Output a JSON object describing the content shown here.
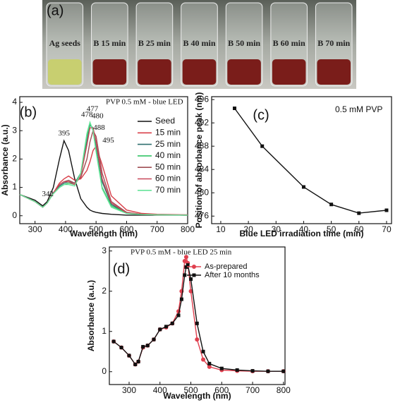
{
  "photo": {
    "panel": "(a)",
    "vials": [
      "Ag seeds",
      "B 15 min",
      "B 25 min",
      "B 40 min",
      "B 50 min",
      "B 60 min",
      "B 70 min"
    ]
  },
  "chart_data": [
    {
      "type": "line",
      "panel": "(b)",
      "legend_title": "PVP 0.5 mM - blue LED",
      "x_label": "Wavelength (nm)",
      "y_label": "Absorbance (a.u.)",
      "xlim": [
        250,
        800
      ],
      "xticks": [
        300,
        400,
        500,
        600,
        700,
        800
      ],
      "ylim": [
        -0.28,
        4.2
      ],
      "yticks": [
        0,
        1,
        2,
        3,
        4
      ],
      "x": [
        250,
        300,
        325,
        340,
        360,
        380,
        395,
        410,
        430,
        450,
        470,
        480,
        490,
        500,
        520,
        550,
        600,
        650,
        700,
        800
      ],
      "series": [
        {
          "name": "Seed",
          "color": "#111111",
          "values": [
            0.75,
            0.55,
            0.35,
            0.5,
            1.0,
            2.0,
            2.65,
            2.3,
            1.3,
            0.6,
            0.3,
            0.2,
            0.15,
            0.12,
            0.08,
            0.05,
            0.02,
            0.02,
            0.02,
            0.02
          ]
        },
        {
          "name": "15 min",
          "color": "#d9404a",
          "values": [
            0.75,
            0.5,
            0.3,
            0.45,
            0.8,
            1.15,
            1.3,
            1.4,
            1.25,
            1.3,
            1.6,
            1.9,
            2.3,
            2.45,
            1.8,
            0.7,
            0.2,
            0.08,
            0.05,
            0.03
          ]
        },
        {
          "name": "25 min",
          "color": "#2f6f6f",
          "values": [
            0.75,
            0.5,
            0.3,
            0.45,
            0.8,
            1.05,
            1.15,
            1.2,
            1.15,
            1.5,
            2.6,
            3.2,
            3.1,
            2.5,
            1.2,
            0.4,
            0.1,
            0.05,
            0.03,
            0.02
          ]
        },
        {
          "name": "40 min",
          "color": "#33c466",
          "values": [
            0.75,
            0.5,
            0.3,
            0.45,
            0.78,
            1.0,
            1.1,
            1.15,
            1.1,
            1.5,
            2.8,
            3.25,
            3.0,
            2.3,
            1.0,
            0.35,
            0.1,
            0.05,
            0.03,
            0.02
          ]
        },
        {
          "name": "50 min",
          "color": "#a04f55",
          "values": [
            0.75,
            0.5,
            0.3,
            0.45,
            0.8,
            1.1,
            1.2,
            1.25,
            1.15,
            1.35,
            2.0,
            2.6,
            3.0,
            2.8,
            1.5,
            0.5,
            0.12,
            0.05,
            0.03,
            0.02
          ]
        },
        {
          "name": "60 min",
          "color": "#c8485a",
          "values": [
            0.75,
            0.5,
            0.3,
            0.45,
            0.8,
            1.1,
            1.2,
            1.2,
            1.1,
            1.4,
            2.5,
            3.1,
            3.1,
            2.6,
            1.3,
            0.45,
            0.1,
            0.05,
            0.03,
            0.02
          ]
        },
        {
          "name": "70 min",
          "color": "#66e39a",
          "values": [
            0.75,
            0.5,
            0.3,
            0.45,
            0.78,
            1.0,
            1.1,
            1.1,
            1.05,
            1.5,
            2.9,
            3.3,
            3.0,
            2.25,
            0.95,
            0.3,
            0.08,
            0.04,
            0.03,
            0.02
          ]
        }
      ],
      "annotations": [
        {
          "label": "342",
          "x": 342,
          "y": 0.5
        },
        {
          "label": "395",
          "x": 395,
          "y": 2.65
        },
        {
          "label": "478",
          "x": 470,
          "y": 3.3
        },
        {
          "label": "477",
          "x": 488,
          "y": 3.5
        },
        {
          "label": "480",
          "x": 505,
          "y": 3.25
        },
        {
          "label": "488",
          "x": 510,
          "y": 2.85
        },
        {
          "label": "495",
          "x": 540,
          "y": 2.4
        }
      ]
    },
    {
      "type": "line",
      "panel": "(c)",
      "note": "0.5 mM PVP",
      "x_label": "Blue LED irradiation time (min)",
      "y_label": "Position of absorbance peak (nm)",
      "xlim": [
        6.7,
        71.8
      ],
      "xticks": [
        10,
        20,
        30,
        40,
        50,
        60,
        70
      ],
      "ylim": [
        474.7,
        496.5
      ],
      "yticks": [
        476,
        480,
        484,
        488,
        492,
        496
      ],
      "x": [
        15,
        25,
        40,
        50,
        60,
        70
      ],
      "values": [
        494.5,
        488,
        481,
        478,
        476.5,
        477
      ],
      "color": "#111111",
      "marker": "square"
    },
    {
      "type": "line",
      "panel": "(d)",
      "legend_title": "PVP 0.5 mM - blue LED 25 min",
      "x_label": "Wavelength (nm)",
      "y_label": "Absorbance (a.u.)",
      "xlim": [
        236,
        805
      ],
      "xticks": [
        300,
        400,
        500,
        600,
        700,
        800
      ],
      "ylim": [
        -0.32,
        3.1
      ],
      "yticks": [
        0,
        1,
        2,
        3
      ],
      "x": [
        250,
        275,
        300,
        320,
        330,
        345,
        360,
        380,
        400,
        420,
        440,
        460,
        470,
        480,
        485,
        490,
        500,
        520,
        540,
        560,
        600,
        650,
        700,
        750,
        800
      ],
      "series": [
        {
          "name": "As-prepared",
          "color": "#e0404f",
          "marker": "circle",
          "values": [
            0.75,
            0.6,
            0.4,
            0.18,
            0.25,
            0.6,
            0.65,
            0.8,
            1.05,
            1.1,
            1.2,
            1.5,
            2.0,
            2.75,
            2.85,
            2.7,
            2.0,
            0.8,
            0.3,
            0.12,
            0.04,
            0.02,
            0.01,
            0.01,
            0.01
          ]
        },
        {
          "name": "After 10 months",
          "color": "#111111",
          "marker": "square",
          "values": [
            0.75,
            0.6,
            0.4,
            0.18,
            0.25,
            0.62,
            0.65,
            0.8,
            1.05,
            1.12,
            1.2,
            1.4,
            1.8,
            2.4,
            2.6,
            2.65,
            2.3,
            1.2,
            0.5,
            0.2,
            0.08,
            0.04,
            0.02,
            0.01,
            0.01
          ]
        }
      ]
    }
  ]
}
